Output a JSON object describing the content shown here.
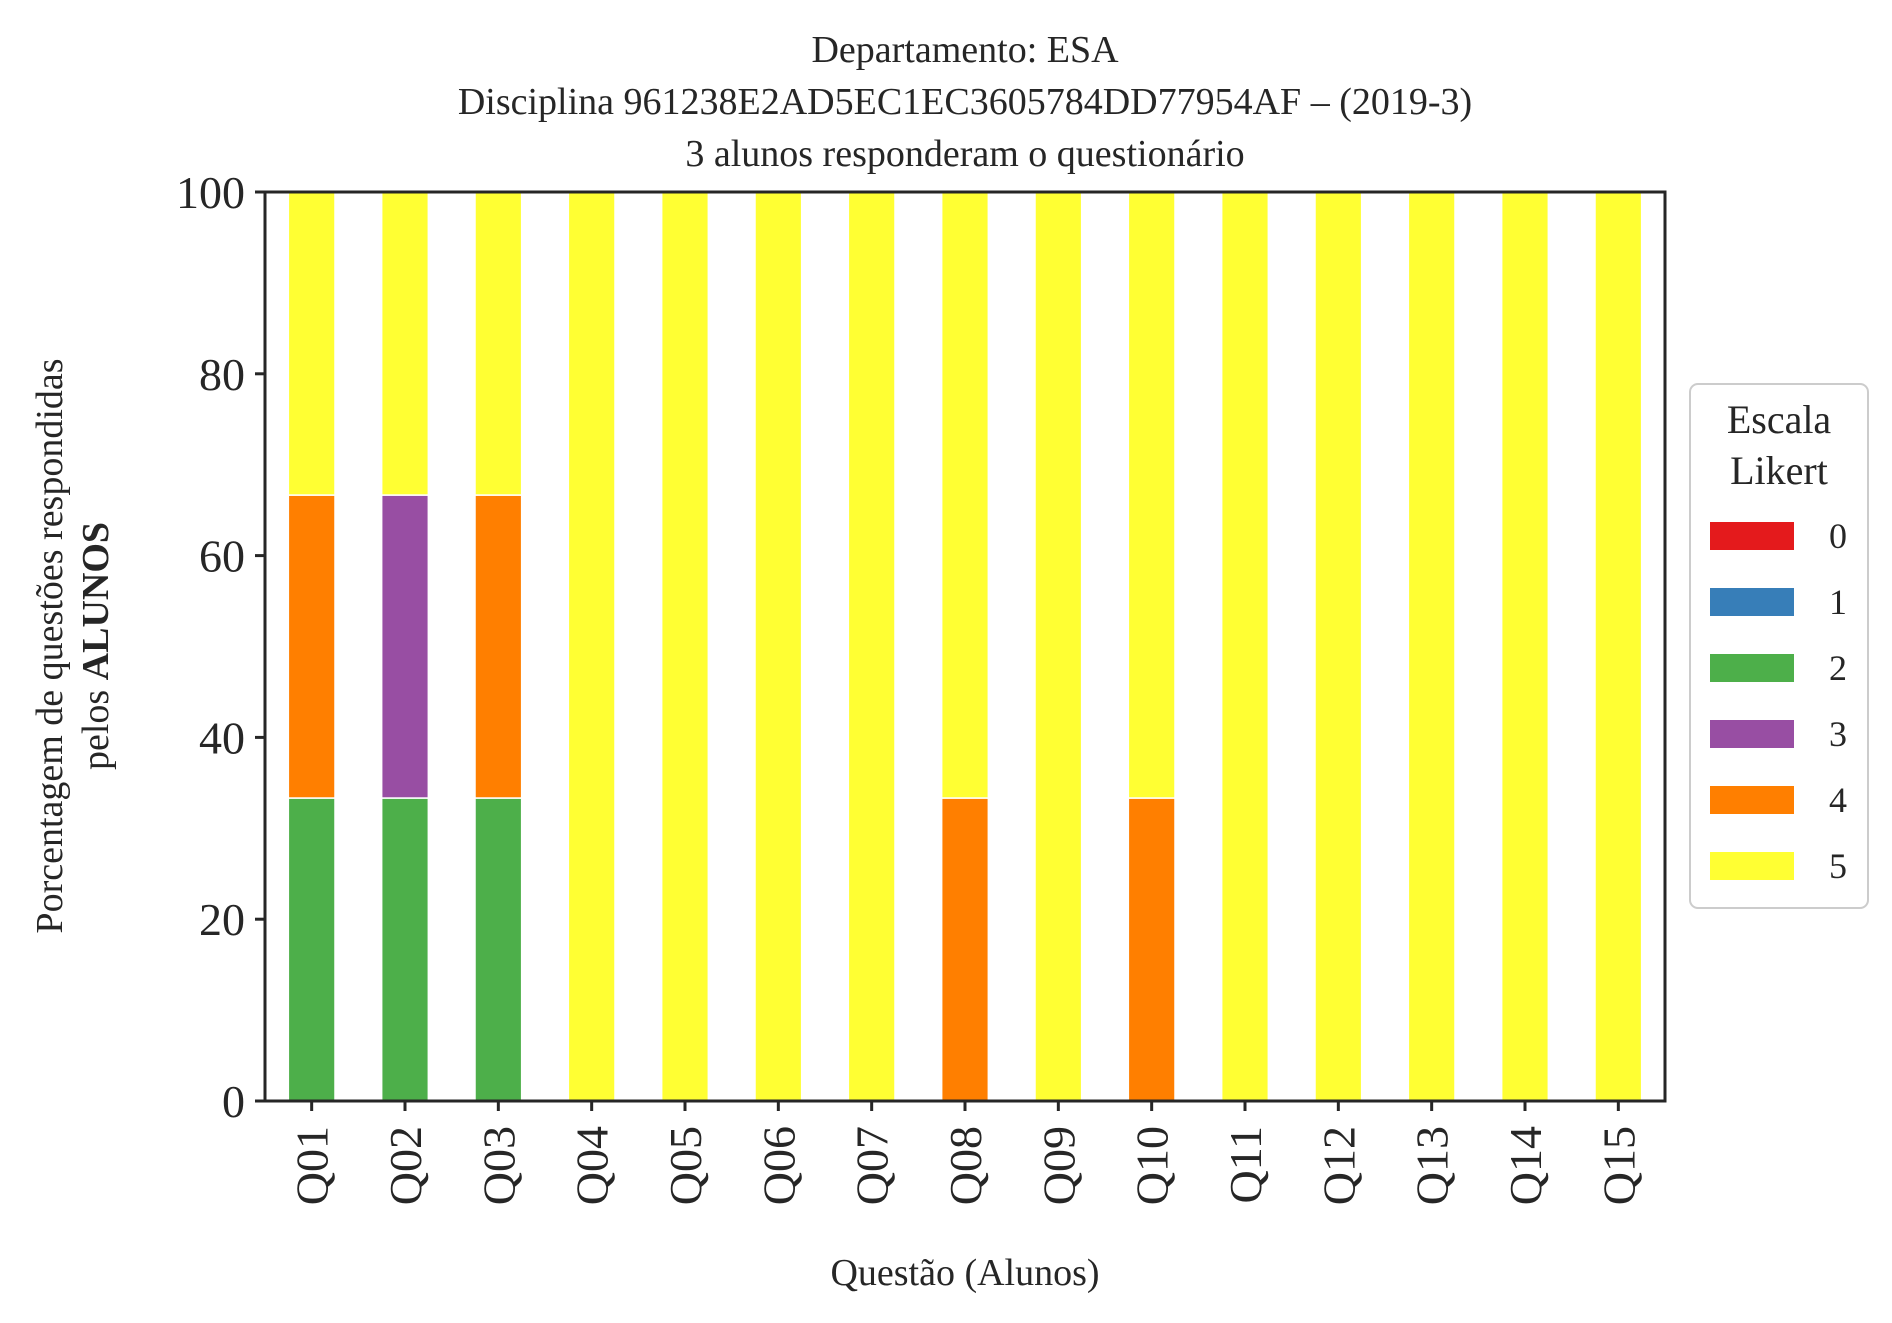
{
  "chart_data": {
    "type": "bar",
    "stacked": true,
    "title": {
      "line1": "Departamento: ESA",
      "line2": "Disciplina 961238E2AD5EC1EC3605784DD77954AF – (2019-3)",
      "line3": "3 alunos responderam o questionário"
    },
    "xlabel": "Questão (Alunos)",
    "ylabel": {
      "line1": "Porcentagem de questões respondidas",
      "line2_prefix": "pelos ",
      "line2_bold": "ALUNOS"
    },
    "ylim": [
      0,
      100
    ],
    "yticks": [
      0,
      20,
      40,
      60,
      80,
      100
    ],
    "yticks_labels": [
      "0",
      "20",
      "40",
      "60",
      "80",
      "100"
    ],
    "grid": false,
    "categories": [
      "Q01",
      "Q02",
      "Q03",
      "Q04",
      "Q05",
      "Q06",
      "Q07",
      "Q08",
      "Q09",
      "Q10",
      "Q11",
      "Q12",
      "Q13",
      "Q14",
      "Q15"
    ],
    "legend": {
      "title_line1": "Escala",
      "title_line2": "Likert",
      "placement": "right"
    },
    "series": [
      {
        "name": "0",
        "color": "#e41a1c",
        "values": [
          0,
          0,
          0,
          0,
          0,
          0,
          0,
          0,
          0,
          0,
          0,
          0,
          0,
          0,
          0
        ]
      },
      {
        "name": "1",
        "color": "#377eb8",
        "values": [
          0,
          0,
          0,
          0,
          0,
          0,
          0,
          0,
          0,
          0,
          0,
          0,
          0,
          0,
          0
        ]
      },
      {
        "name": "2",
        "color": "#4daf4a",
        "values": [
          33.33,
          33.33,
          33.33,
          0,
          0,
          0,
          0,
          0,
          0,
          0,
          0,
          0,
          0,
          0,
          0
        ]
      },
      {
        "name": "3",
        "color": "#984ea3",
        "values": [
          0,
          33.33,
          0,
          0,
          0,
          0,
          0,
          0,
          0,
          0,
          0,
          0,
          0,
          0,
          0
        ]
      },
      {
        "name": "4",
        "color": "#ff7f00",
        "values": [
          33.33,
          0,
          33.33,
          0,
          0,
          0,
          0,
          33.33,
          0,
          33.33,
          0,
          0,
          0,
          0,
          0
        ]
      },
      {
        "name": "5",
        "color": "#ffff33",
        "values": [
          33.34,
          33.34,
          33.34,
          100,
          100,
          100,
          100,
          66.67,
          100,
          66.67,
          100,
          100,
          100,
          100,
          100
        ]
      }
    ]
  }
}
